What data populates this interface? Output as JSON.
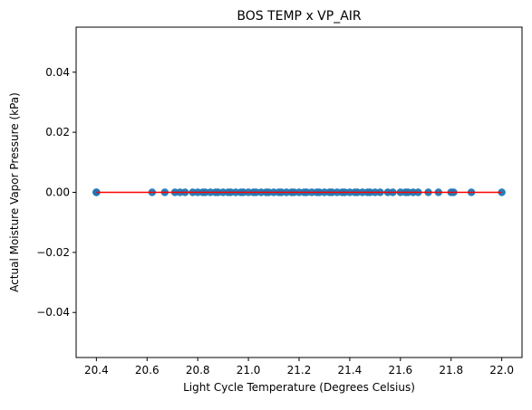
{
  "chart_data": {
    "type": "scatter",
    "title": "BOS TEMP x VP_AIR",
    "xlabel": "Light Cycle Temperature (Degrees Celsius)",
    "ylabel": "Actual Moisture Vapor Pressure (kPa)",
    "xlim": [
      20.32,
      22.08
    ],
    "ylim": [
      -0.055,
      0.055
    ],
    "xticks": [
      20.4,
      20.6,
      20.8,
      21.0,
      21.2,
      21.4,
      21.6,
      21.8,
      22.0
    ],
    "xtick_labels": [
      "20.4",
      "20.6",
      "20.8",
      "21.0",
      "21.2",
      "21.4",
      "21.6",
      "21.8",
      "22.0"
    ],
    "yticks": [
      -0.04,
      -0.02,
      0.0,
      0.02,
      0.04
    ],
    "ytick_labels": [
      "−0.04",
      "−0.02",
      "0.00",
      "0.02",
      "0.04"
    ],
    "grid": false,
    "legend": "none",
    "series": [
      {
        "kind": "points",
        "color": "#1f77b4",
        "x": [
          20.4,
          20.4,
          20.62,
          20.67,
          20.71,
          20.73,
          20.75,
          20.78,
          20.8,
          20.82,
          20.83,
          20.85,
          20.87,
          20.88,
          20.9,
          20.92,
          20.93,
          20.95,
          20.97,
          20.98,
          21.0,
          21.02,
          21.03,
          21.05,
          21.07,
          21.08,
          21.1,
          21.12,
          21.13,
          21.15,
          21.17,
          21.18,
          21.2,
          21.22,
          21.23,
          21.25,
          21.27,
          21.28,
          21.3,
          21.32,
          21.33,
          21.35,
          21.37,
          21.38,
          21.4,
          21.42,
          21.43,
          21.45,
          21.47,
          21.48,
          21.5,
          21.52,
          21.55,
          21.57,
          21.6,
          21.62,
          21.63,
          21.65,
          21.67,
          21.71,
          21.75,
          21.8,
          21.81,
          21.88,
          22.0
        ],
        "y": [
          0,
          0,
          0,
          0,
          0,
          0,
          0,
          0,
          0,
          0,
          0,
          0,
          0,
          0,
          0,
          0,
          0,
          0,
          0,
          0,
          0,
          0,
          0,
          0,
          0,
          0,
          0,
          0,
          0,
          0,
          0,
          0,
          0,
          0,
          0,
          0,
          0,
          0,
          0,
          0,
          0,
          0,
          0,
          0,
          0,
          0,
          0,
          0,
          0,
          0,
          0,
          0,
          0,
          0,
          0,
          0,
          0,
          0,
          0,
          0,
          0,
          0,
          0,
          0,
          0
        ]
      },
      {
        "kind": "fit-line",
        "color": "#ff0000",
        "x": [
          20.4,
          22.0
        ],
        "y": [
          0,
          0
        ]
      }
    ]
  }
}
